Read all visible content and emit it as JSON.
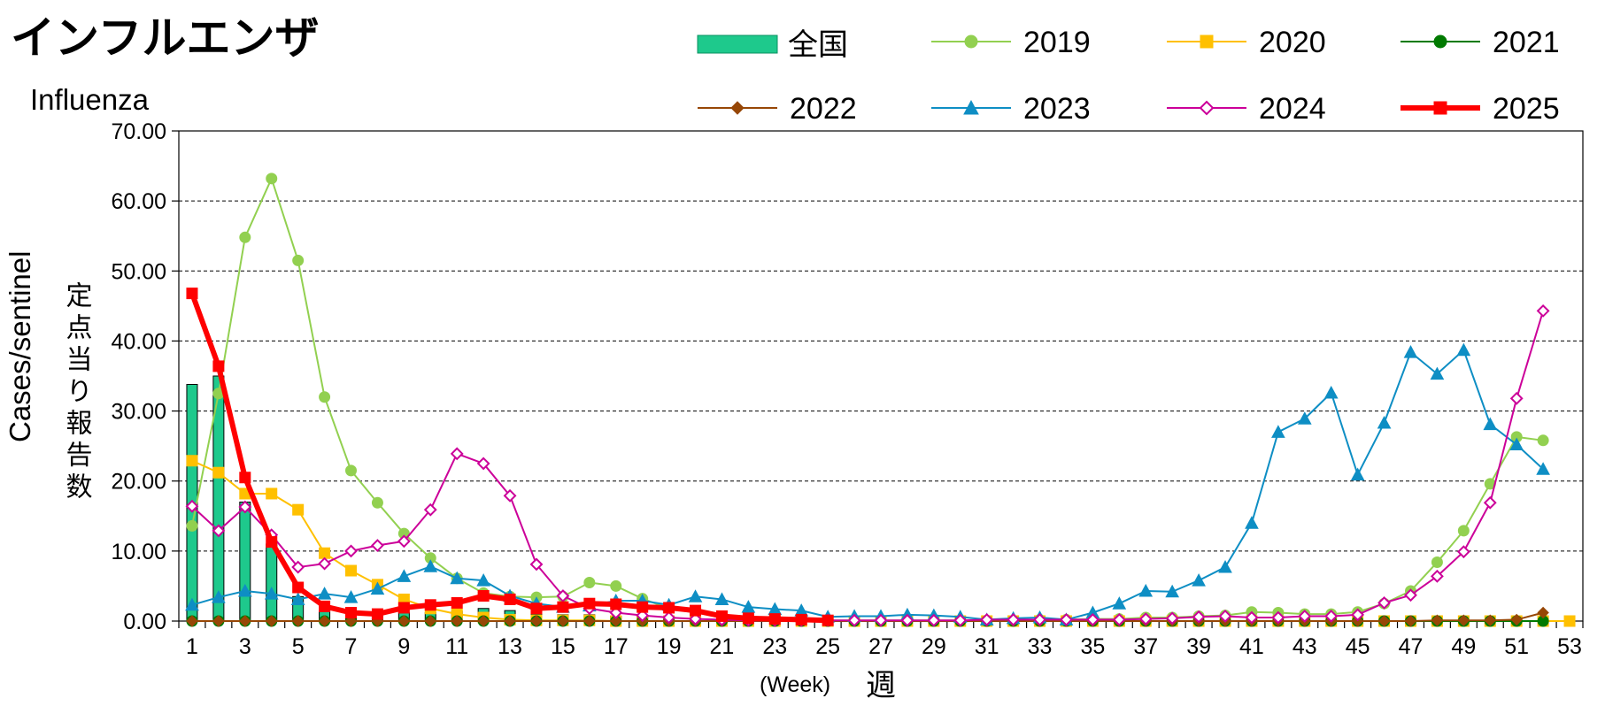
{
  "title": "インフルエンザ",
  "subtitle": "Influenza",
  "chart_data": {
    "type": "line",
    "ylabel_jp": "定点当り報告数",
    "ylabel_en": "Cases/sentinel",
    "xlabel_jp": "週",
    "xlabel_en": "(Week)",
    "ylim": [
      0,
      70
    ],
    "xlim": [
      0.5,
      53.5
    ],
    "yticks": [
      "0.00",
      "10.00",
      "20.00",
      "30.00",
      "40.00",
      "50.00",
      "60.00",
      "70.00"
    ],
    "xticks": [
      "1",
      "3",
      "5",
      "7",
      "9",
      "11",
      "13",
      "15",
      "17",
      "19",
      "21",
      "23",
      "25",
      "27",
      "29",
      "31",
      "33",
      "35",
      "37",
      "39",
      "41",
      "43",
      "45",
      "47",
      "49",
      "51",
      "53"
    ],
    "grid": "horizontal dashed",
    "legend_position": "top",
    "bar_series": {
      "name": "全国",
      "color": "#1ec98c",
      "x": [
        1,
        2,
        3,
        4,
        5,
        6,
        7,
        8,
        9,
        10,
        11,
        12,
        13,
        14,
        15,
        16,
        17,
        18,
        19,
        20,
        21,
        22,
        23,
        24,
        25
      ],
      "values": [
        33.8,
        35.0,
        17.0,
        11.0,
        3.5,
        1.5,
        1.3,
        1.1,
        1.2,
        1.2,
        1.4,
        1.8,
        1.5,
        1.0,
        0.9,
        0.9,
        0.7,
        0.6,
        0.5,
        0.5,
        0.3,
        0.2,
        0.2,
        0.2,
        0.1
      ]
    },
    "series": [
      {
        "name": "2019",
        "color": "#92d050",
        "marker": "circle",
        "width": 2,
        "x": [
          1,
          2,
          3,
          4,
          5,
          6,
          7,
          8,
          9,
          10,
          11,
          12,
          13,
          14,
          15,
          16,
          17,
          18,
          19,
          20,
          21,
          22,
          23,
          24,
          25,
          26,
          27,
          28,
          29,
          30,
          31,
          32,
          33,
          34,
          35,
          36,
          37,
          38,
          39,
          40,
          41,
          42,
          43,
          44,
          45,
          46,
          47,
          48,
          49,
          50,
          51,
          52
        ],
        "values": [
          13.6,
          32.5,
          54.8,
          63.2,
          51.5,
          32.0,
          21.5,
          16.9,
          12.5,
          9.0,
          6.1,
          4.0,
          3.5,
          3.4,
          3.5,
          5.5,
          5.0,
          3.2,
          1.8,
          1.2,
          0.6,
          0.4,
          0.3,
          0.2,
          0.1,
          0.1,
          0.1,
          0.1,
          0.1,
          0.1,
          0.1,
          0.1,
          0.2,
          0.2,
          0.3,
          0.3,
          0.5,
          0.5,
          0.7,
          0.8,
          1.3,
          1.2,
          1.0,
          1.0,
          1.3,
          2.5,
          4.3,
          8.4,
          12.9,
          19.6,
          26.3,
          25.8
        ]
      },
      {
        "name": "2020",
        "color": "#ffc000",
        "marker": "square",
        "width": 2,
        "x": [
          1,
          2,
          3,
          4,
          5,
          6,
          7,
          8,
          9,
          10,
          11,
          12,
          13,
          14,
          15,
          16,
          17,
          18,
          19,
          20,
          21,
          22,
          23,
          24,
          25,
          26,
          27,
          28,
          29,
          30,
          31,
          32,
          33,
          34,
          35,
          36,
          37,
          38,
          39,
          40,
          41,
          42,
          43,
          44,
          45,
          46,
          47,
          48,
          49,
          50,
          51,
          52,
          53
        ],
        "values": [
          22.9,
          21.2,
          18.2,
          18.2,
          15.9,
          9.7,
          7.2,
          5.2,
          3.1,
          1.8,
          1.0,
          0.5,
          0.2,
          0.1,
          0.1,
          0.1,
          0,
          0,
          0,
          0,
          0,
          0,
          0,
          0,
          0,
          0,
          0,
          0,
          0,
          0,
          0,
          0,
          0,
          0,
          0,
          0,
          0,
          0,
          0,
          0,
          0,
          0,
          0,
          0,
          0,
          0,
          0,
          0,
          0,
          0,
          0,
          0,
          0
        ]
      },
      {
        "name": "2021",
        "color": "#007a00",
        "marker": "circle",
        "width": 2,
        "x": [
          1,
          2,
          3,
          4,
          5,
          6,
          7,
          8,
          9,
          10,
          11,
          12,
          13,
          14,
          15,
          16,
          17,
          18,
          19,
          20,
          21,
          22,
          23,
          24,
          25,
          26,
          27,
          28,
          29,
          30,
          31,
          32,
          33,
          34,
          35,
          36,
          37,
          38,
          39,
          40,
          41,
          42,
          43,
          44,
          45,
          46,
          47,
          48,
          49,
          50,
          51,
          52
        ],
        "values": [
          0,
          0,
          0,
          0,
          0,
          0,
          0,
          0,
          0,
          0,
          0,
          0,
          0,
          0,
          0,
          0,
          0,
          0,
          0,
          0,
          0,
          0,
          0,
          0,
          0,
          0,
          0,
          0,
          0,
          0,
          0,
          0,
          0,
          0,
          0,
          0,
          0,
          0,
          0,
          0,
          0,
          0,
          0,
          0,
          0,
          0,
          0,
          0,
          0,
          0,
          0,
          0
        ]
      },
      {
        "name": "2022",
        "color": "#974706",
        "marker": "diamond",
        "width": 2,
        "x": [
          1,
          2,
          3,
          4,
          5,
          6,
          7,
          8,
          9,
          10,
          11,
          12,
          13,
          14,
          15,
          16,
          17,
          18,
          19,
          20,
          21,
          22,
          23,
          24,
          25,
          26,
          27,
          28,
          29,
          30,
          31,
          32,
          33,
          34,
          35,
          36,
          37,
          38,
          39,
          40,
          41,
          42,
          43,
          44,
          45,
          46,
          47,
          48,
          49,
          50,
          51,
          52
        ],
        "values": [
          0,
          0,
          0,
          0,
          0,
          0,
          0,
          0,
          0,
          0,
          0,
          0,
          0,
          0,
          0,
          0,
          0,
          0,
          0,
          0,
          0,
          0,
          0,
          0,
          0,
          0,
          0,
          0,
          0,
          0,
          0,
          0,
          0,
          0,
          0,
          0,
          0,
          0,
          0,
          0,
          0,
          0,
          0,
          0,
          0,
          0,
          0,
          0.1,
          0.1,
          0.1,
          0.2,
          1.2
        ]
      },
      {
        "name": "2023",
        "color": "#0e8ec4",
        "marker": "triangle",
        "width": 2,
        "x": [
          1,
          2,
          3,
          4,
          5,
          6,
          7,
          8,
          9,
          10,
          11,
          12,
          13,
          14,
          15,
          16,
          17,
          18,
          19,
          20,
          21,
          22,
          23,
          24,
          25,
          26,
          27,
          28,
          29,
          30,
          31,
          32,
          33,
          34,
          35,
          36,
          37,
          38,
          39,
          40,
          41,
          42,
          43,
          44,
          45,
          46,
          47,
          48,
          49,
          50,
          51,
          52
        ],
        "values": [
          2.3,
          3.4,
          4.3,
          3.9,
          3.1,
          3.9,
          3.4,
          4.6,
          6.4,
          7.8,
          6.1,
          5.8,
          3.6,
          2.5,
          2.0,
          2.2,
          2.9,
          2.9,
          2.3,
          3.5,
          3.1,
          2.0,
          1.7,
          1.5,
          0.6,
          0.7,
          0.7,
          0.9,
          0.8,
          0.6,
          0.2,
          0.4,
          0.5,
          0.2,
          1.2,
          2.5,
          4.3,
          4.2,
          5.8,
          7.7,
          14.0,
          27.0,
          28.9,
          32.6,
          20.9,
          28.3,
          38.4,
          35.3,
          38.7,
          28.1,
          25.2,
          21.7
        ]
      },
      {
        "name": "2024",
        "color": "#cc0099",
        "marker": "diamond-open",
        "width": 2,
        "x": [
          1,
          2,
          3,
          4,
          5,
          6,
          7,
          8,
          9,
          10,
          11,
          12,
          13,
          14,
          15,
          16,
          17,
          18,
          19,
          20,
          21,
          22,
          23,
          24,
          25,
          26,
          27,
          28,
          29,
          30,
          31,
          32,
          33,
          34,
          35,
          36,
          37,
          38,
          39,
          40,
          41,
          42,
          43,
          44,
          45,
          46,
          47,
          48,
          49,
          50,
          51,
          52
        ],
        "values": [
          16.4,
          12.9,
          16.3,
          12.3,
          7.7,
          8.2,
          10.0,
          10.8,
          11.4,
          15.9,
          23.9,
          22.5,
          17.9,
          8.1,
          3.6,
          1.8,
          1.2,
          0.8,
          0.5,
          0.3,
          0.2,
          0.1,
          0.1,
          0.1,
          0.1,
          0.1,
          0.1,
          0.1,
          0.1,
          0.1,
          0.2,
          0.2,
          0.2,
          0.2,
          0.2,
          0.2,
          0.3,
          0.4,
          0.6,
          0.7,
          0.5,
          0.5,
          0.7,
          0.7,
          0.9,
          2.6,
          3.7,
          6.4,
          9.9,
          16.9,
          31.8,
          44.3
        ]
      },
      {
        "name": "2025",
        "color": "#ff0000",
        "marker": "square",
        "width": 6,
        "x": [
          1,
          2,
          3,
          4,
          5,
          6,
          7,
          8,
          9,
          10,
          11,
          12,
          13,
          14,
          15,
          16,
          17,
          18,
          19,
          20,
          21,
          22,
          23,
          24,
          25
        ],
        "values": [
          46.8,
          36.4,
          20.5,
          11.3,
          4.8,
          2.1,
          1.2,
          1.0,
          1.9,
          2.3,
          2.6,
          3.6,
          3.1,
          1.8,
          2.0,
          2.5,
          2.4,
          2.0,
          1.9,
          1.5,
          0.7,
          0.4,
          0.3,
          0.2,
          0.1
        ]
      }
    ]
  }
}
